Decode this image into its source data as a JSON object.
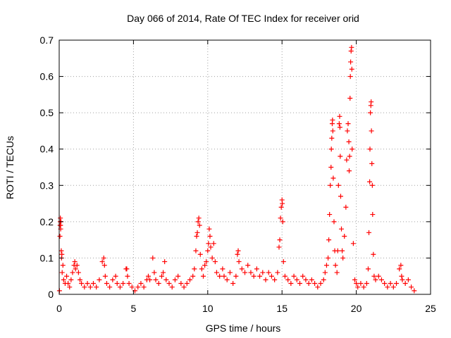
{
  "chart_data": {
    "type": "scatter",
    "title": "Day 066 of 2014, Rate Of TEC Index for receiver orid",
    "xlabel": "GPS time / hours",
    "ylabel": "ROTI / TECUs",
    "xlim": [
      0,
      25
    ],
    "ylim": [
      0,
      0.7
    ],
    "xticks": [
      0,
      5,
      10,
      15,
      20,
      25
    ],
    "yticks": [
      0,
      0.1,
      0.2,
      0.3,
      0.4,
      0.5,
      0.6,
      0.7
    ],
    "xtick_labels": [
      "0",
      "5",
      "10",
      "15",
      "20",
      "25"
    ],
    "ytick_labels": [
      "0",
      "0.1",
      "0.2",
      "0.3",
      "0.4",
      "0.5",
      "0.6",
      "0.7"
    ],
    "grid": true,
    "marker": "+",
    "color": "#ff0000",
    "series": [
      {
        "name": "ROTI",
        "points": [
          [
            0.02,
            0.01
          ],
          [
            0.05,
            0.16
          ],
          [
            0.06,
            0.19
          ],
          [
            0.07,
            0.2
          ],
          [
            0.08,
            0.21
          ],
          [
            0.09,
            0.19
          ],
          [
            0.1,
            0.18
          ],
          [
            0.12,
            0.2
          ],
          [
            0.14,
            0.12
          ],
          [
            0.16,
            0.1
          ],
          [
            0.18,
            0.11
          ],
          [
            0.2,
            0.06
          ],
          [
            0.25,
            0.08
          ],
          [
            0.3,
            0.04
          ],
          [
            0.4,
            0.03
          ],
          [
            0.5,
            0.05
          ],
          [
            0.6,
            0.03
          ],
          [
            0.7,
            0.02
          ],
          [
            0.8,
            0.04
          ],
          [
            0.9,
            0.06
          ],
          [
            1.0,
            0.08
          ],
          [
            1.05,
            0.09
          ],
          [
            1.1,
            0.07
          ],
          [
            1.2,
            0.08
          ],
          [
            1.3,
            0.06
          ],
          [
            1.4,
            0.04
          ],
          [
            1.5,
            0.03
          ],
          [
            1.7,
            0.02
          ],
          [
            1.9,
            0.03
          ],
          [
            2.1,
            0.02
          ],
          [
            2.3,
            0.03
          ],
          [
            2.5,
            0.02
          ],
          [
            2.7,
            0.04
          ],
          [
            2.9,
            0.09
          ],
          [
            3.0,
            0.1
          ],
          [
            3.05,
            0.08
          ],
          [
            3.1,
            0.05
          ],
          [
            3.2,
            0.03
          ],
          [
            3.4,
            0.02
          ],
          [
            3.6,
            0.04
          ],
          [
            3.8,
            0.05
          ],
          [
            3.9,
            0.03
          ],
          [
            4.1,
            0.02
          ],
          [
            4.3,
            0.03
          ],
          [
            4.5,
            0.07
          ],
          [
            4.55,
            0.07
          ],
          [
            4.6,
            0.05
          ],
          [
            4.7,
            0.03
          ],
          [
            4.9,
            0.02
          ],
          [
            5.1,
            0.01
          ],
          [
            5.3,
            0.02
          ],
          [
            5.5,
            0.03
          ],
          [
            5.7,
            0.02
          ],
          [
            5.9,
            0.04
          ],
          [
            6.0,
            0.05
          ],
          [
            6.1,
            0.04
          ],
          [
            6.3,
            0.1
          ],
          [
            6.4,
            0.06
          ],
          [
            6.5,
            0.04
          ],
          [
            6.7,
            0.03
          ],
          [
            6.9,
            0.05
          ],
          [
            7.0,
            0.06
          ],
          [
            7.1,
            0.09
          ],
          [
            7.2,
            0.04
          ],
          [
            7.4,
            0.03
          ],
          [
            7.6,
            0.02
          ],
          [
            7.8,
            0.04
          ],
          [
            8.0,
            0.05
          ],
          [
            8.2,
            0.03
          ],
          [
            8.4,
            0.02
          ],
          [
            8.6,
            0.03
          ],
          [
            8.8,
            0.04
          ],
          [
            9.0,
            0.05
          ],
          [
            9.1,
            0.07
          ],
          [
            9.2,
            0.12
          ],
          [
            9.25,
            0.16
          ],
          [
            9.3,
            0.17
          ],
          [
            9.35,
            0.2
          ],
          [
            9.4,
            0.21
          ],
          [
            9.45,
            0.19
          ],
          [
            9.5,
            0.11
          ],
          [
            9.6,
            0.07
          ],
          [
            9.7,
            0.05
          ],
          [
            9.8,
            0.08
          ],
          [
            9.9,
            0.09
          ],
          [
            10.0,
            0.12
          ],
          [
            10.05,
            0.14
          ],
          [
            10.1,
            0.18
          ],
          [
            10.15,
            0.16
          ],
          [
            10.2,
            0.13
          ],
          [
            10.3,
            0.1
          ],
          [
            10.4,
            0.14
          ],
          [
            10.5,
            0.09
          ],
          [
            10.6,
            0.06
          ],
          [
            10.8,
            0.05
          ],
          [
            11.0,
            0.07
          ],
          [
            11.1,
            0.05
          ],
          [
            11.3,
            0.04
          ],
          [
            11.5,
            0.06
          ],
          [
            11.7,
            0.03
          ],
          [
            11.9,
            0.05
          ],
          [
            12.0,
            0.11
          ],
          [
            12.05,
            0.12
          ],
          [
            12.1,
            0.09
          ],
          [
            12.3,
            0.07
          ],
          [
            12.5,
            0.06
          ],
          [
            12.7,
            0.08
          ],
          [
            12.9,
            0.06
          ],
          [
            13.1,
            0.05
          ],
          [
            13.3,
            0.07
          ],
          [
            13.5,
            0.05
          ],
          [
            13.7,
            0.06
          ],
          [
            13.9,
            0.04
          ],
          [
            14.1,
            0.06
          ],
          [
            14.3,
            0.05
          ],
          [
            14.5,
            0.04
          ],
          [
            14.7,
            0.06
          ],
          [
            14.8,
            0.13
          ],
          [
            14.85,
            0.15
          ],
          [
            14.9,
            0.21
          ],
          [
            14.95,
            0.24
          ],
          [
            15.0,
            0.26
          ],
          [
            15.02,
            0.25
          ],
          [
            15.05,
            0.2
          ],
          [
            15.1,
            0.09
          ],
          [
            15.2,
            0.05
          ],
          [
            15.4,
            0.04
          ],
          [
            15.6,
            0.03
          ],
          [
            15.8,
            0.05
          ],
          [
            16.0,
            0.04
          ],
          [
            16.2,
            0.03
          ],
          [
            16.4,
            0.05
          ],
          [
            16.6,
            0.04
          ],
          [
            16.8,
            0.03
          ],
          [
            17.0,
            0.04
          ],
          [
            17.2,
            0.03
          ],
          [
            17.4,
            0.02
          ],
          [
            17.6,
            0.03
          ],
          [
            17.8,
            0.04
          ],
          [
            17.9,
            0.06
          ],
          [
            18.0,
            0.08
          ],
          [
            18.1,
            0.1
          ],
          [
            18.15,
            0.15
          ],
          [
            18.2,
            0.22
          ],
          [
            18.25,
            0.3
          ],
          [
            18.3,
            0.35
          ],
          [
            18.32,
            0.4
          ],
          [
            18.35,
            0.43
          ],
          [
            18.38,
            0.47
          ],
          [
            18.4,
            0.48
          ],
          [
            18.42,
            0.45
          ],
          [
            18.45,
            0.32
          ],
          [
            18.5,
            0.2
          ],
          [
            18.55,
            0.12
          ],
          [
            18.6,
            0.08
          ],
          [
            18.7,
            0.06
          ],
          [
            18.75,
            0.12
          ],
          [
            18.8,
            0.3
          ],
          [
            18.85,
            0.47
          ],
          [
            18.88,
            0.49
          ],
          [
            18.9,
            0.46
          ],
          [
            18.92,
            0.38
          ],
          [
            18.95,
            0.27
          ],
          [
            19.0,
            0.18
          ],
          [
            19.05,
            0.12
          ],
          [
            19.1,
            0.1
          ],
          [
            19.2,
            0.16
          ],
          [
            19.3,
            0.24
          ],
          [
            19.35,
            0.37
          ],
          [
            19.4,
            0.45
          ],
          [
            19.45,
            0.47
          ],
          [
            19.5,
            0.42
          ],
          [
            19.52,
            0.34
          ],
          [
            19.55,
            0.38
          ],
          [
            19.58,
            0.54
          ],
          [
            19.6,
            0.6
          ],
          [
            19.62,
            0.64
          ],
          [
            19.65,
            0.67
          ],
          [
            19.68,
            0.68
          ],
          [
            19.7,
            0.62
          ],
          [
            19.72,
            0.4
          ],
          [
            19.8,
            0.14
          ],
          [
            19.9,
            0.04
          ],
          [
            20.0,
            0.03
          ],
          [
            20.1,
            0.02
          ],
          [
            20.3,
            0.03
          ],
          [
            20.5,
            0.02
          ],
          [
            20.7,
            0.03
          ],
          [
            20.8,
            0.07
          ],
          [
            20.85,
            0.17
          ],
          [
            20.9,
            0.31
          ],
          [
            20.92,
            0.4
          ],
          [
            20.95,
            0.5
          ],
          [
            20.98,
            0.52
          ],
          [
            21.0,
            0.53
          ],
          [
            21.02,
            0.45
          ],
          [
            21.05,
            0.36
          ],
          [
            21.08,
            0.3
          ],
          [
            21.1,
            0.22
          ],
          [
            21.15,
            0.11
          ],
          [
            21.2,
            0.05
          ],
          [
            21.3,
            0.04
          ],
          [
            21.5,
            0.05
          ],
          [
            21.7,
            0.04
          ],
          [
            21.9,
            0.03
          ],
          [
            22.1,
            0.02
          ],
          [
            22.3,
            0.03
          ],
          [
            22.5,
            0.02
          ],
          [
            22.7,
            0.03
          ],
          [
            22.9,
            0.07
          ],
          [
            23.0,
            0.08
          ],
          [
            23.05,
            0.05
          ],
          [
            23.1,
            0.04
          ],
          [
            23.3,
            0.03
          ],
          [
            23.5,
            0.04
          ],
          [
            23.7,
            0.02
          ],
          [
            23.9,
            0.01
          ]
        ]
      }
    ]
  }
}
